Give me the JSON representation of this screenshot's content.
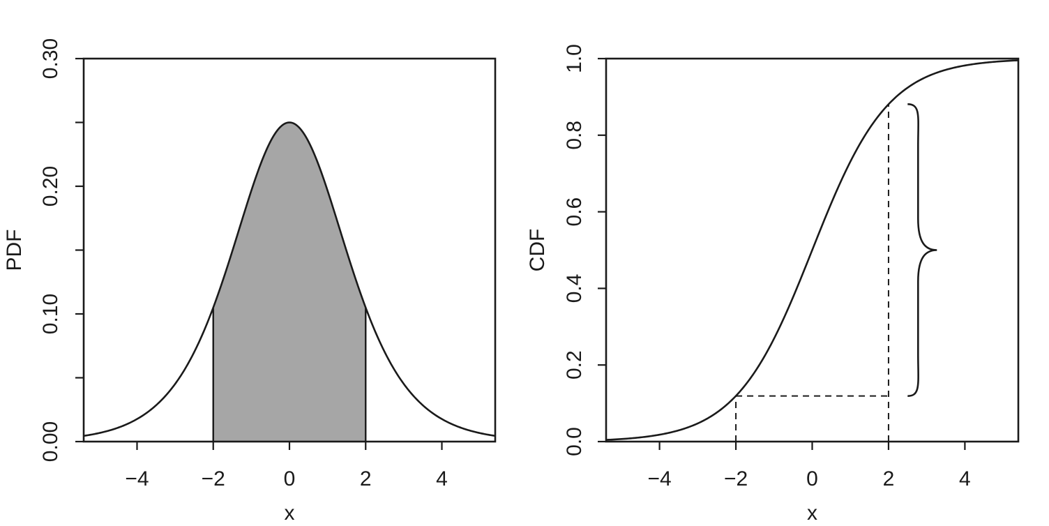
{
  "colors": {
    "line": "#1a1a1a",
    "fill": "#a6a6a6",
    "background": "#ffffff"
  },
  "chart_data": [
    {
      "type": "area",
      "title": "",
      "xlabel": "x",
      "ylabel": "PDF",
      "xlim": [
        -5.4,
        5.4
      ],
      "ylim": [
        0,
        0.3
      ],
      "xticks": [
        -4,
        -2,
        0,
        2,
        4
      ],
      "xtick_labels": [
        "−4",
        "−2",
        "0",
        "2",
        "4"
      ],
      "yticks": [
        0,
        0.05,
        0.1,
        0.15,
        0.2,
        0.25,
        0.3
      ],
      "ytick_labels": [
        "0.00",
        "",
        "0.10",
        "",
        "0.20",
        "",
        "0.30"
      ],
      "curve": "logistic density with location 0 and scale 1",
      "series": [
        {
          "x": [
            -5.4,
            -5,
            -4.5,
            -4,
            -3.5,
            -3,
            -2.5,
            -2,
            -1.5,
            -1,
            -0.5,
            0,
            0.5,
            1,
            1.5,
            2,
            2.5,
            3,
            3.5,
            4,
            4.5,
            5,
            5.4
          ],
          "y": [
            0.0045,
            0.0066,
            0.0109,
            0.0177,
            0.0285,
            0.0452,
            0.0701,
            0.105,
            0.149,
            0.197,
            0.235,
            0.25,
            0.235,
            0.197,
            0.149,
            0.105,
            0.0701,
            0.0452,
            0.0285,
            0.0177,
            0.0109,
            0.0066,
            0.0045
          ]
        }
      ],
      "shaded_interval": [
        -2,
        2
      ],
      "grid": false,
      "legend": "none"
    },
    {
      "type": "line",
      "title": "",
      "xlabel": "x",
      "ylabel": "CDF",
      "xlim": [
        -5.4,
        5.4
      ],
      "ylim": [
        0,
        1
      ],
      "xticks": [
        -4,
        -2,
        0,
        2,
        4
      ],
      "xtick_labels": [
        "−4",
        "−2",
        "0",
        "2",
        "4"
      ],
      "yticks": [
        0,
        0.2,
        0.4,
        0.6,
        0.8,
        1
      ],
      "ytick_labels": [
        "0.0",
        "0.2",
        "0.4",
        "0.6",
        "0.8",
        "1.0"
      ],
      "curve": "logistic distribution function with location 0 and scale 1",
      "series": [
        {
          "x": [
            -5.4,
            -5,
            -4.5,
            -4,
            -3.5,
            -3,
            -2.5,
            -2,
            -1.5,
            -1,
            -0.5,
            0,
            0.5,
            1,
            1.5,
            2,
            2.5,
            3,
            3.5,
            4,
            4.5,
            5,
            5.4
          ],
          "y": [
            0.0045,
            0.0067,
            0.011,
            0.018,
            0.0293,
            0.0474,
            0.0759,
            0.119,
            0.182,
            0.269,
            0.378,
            0.5,
            0.622,
            0.731,
            0.818,
            0.881,
            0.924,
            0.953,
            0.971,
            0.982,
            0.989,
            0.993,
            0.9955
          ]
        }
      ],
      "reference_points": [
        {
          "x": -2,
          "y": 0.119
        },
        {
          "x": 2,
          "y": 0.881
        }
      ],
      "brace": {
        "x": 2.5,
        "y_from": 0.119,
        "y_to": 0.881
      },
      "grid": false,
      "legend": "none"
    }
  ]
}
